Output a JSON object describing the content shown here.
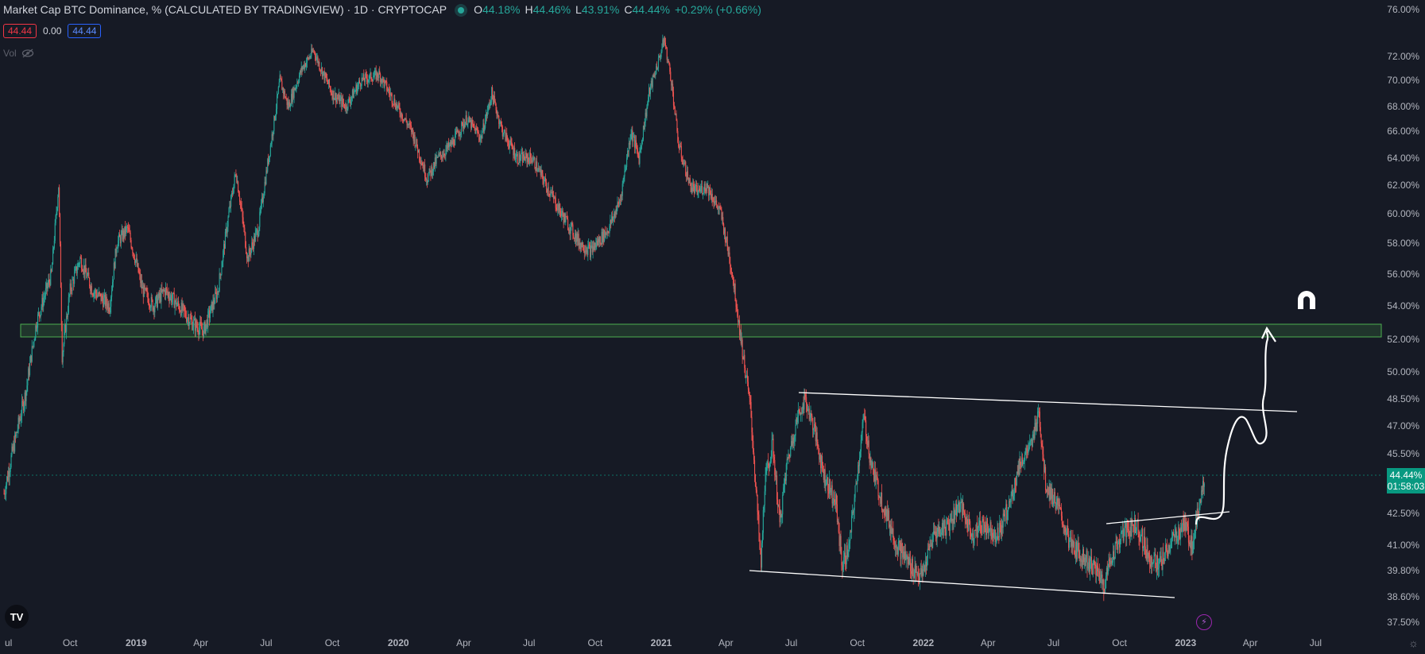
{
  "header": {
    "title": "Market Cap BTC Dominance, % (CALCULATED BY TRADINGVIEW) · 1D · CRYPTOCAP",
    "ohlc": [
      {
        "key": "O",
        "value": "44.18%"
      },
      {
        "key": "H",
        "value": "44.46%"
      },
      {
        "key": "L",
        "value": "43.91%"
      },
      {
        "key": "C",
        "value": "44.44%"
      }
    ],
    "change": "+0.29% (+0.66%)"
  },
  "badges": {
    "sell": "44.44",
    "spread": "0.00",
    "buy": "44.44"
  },
  "vol_label": "Vol",
  "price_tag": {
    "value": "44.44%",
    "countdown": "01:58:03"
  },
  "icons": {
    "logo": "tradingview-logo-icon",
    "hide": "eye-crossed-icon",
    "magnet": "magnet-icon",
    "bolt": "lightning-icon",
    "settings": "gear-icon"
  },
  "colors": {
    "background": "#161a25",
    "up": "#26a69a",
    "down": "#ef5350",
    "zone": "#4caf50",
    "drawing": "#ffffff",
    "price_tag": "#089981"
  },
  "chart_data": {
    "type": "candlestick",
    "y_axis": {
      "range": [
        37.0,
        76.0
      ],
      "ticks": [
        "76.00%",
        "72.00%",
        "70.00%",
        "68.00%",
        "66.00%",
        "64.00%",
        "62.00%",
        "60.00%",
        "58.00%",
        "56.00%",
        "54.00%",
        "52.00%",
        "50.00%",
        "48.50%",
        "47.00%",
        "45.50%",
        "42.50%",
        "41.00%",
        "39.80%",
        "38.60%",
        "37.50%"
      ],
      "tick_values": [
        76,
        72,
        70,
        68,
        66,
        64,
        62,
        60,
        58,
        56,
        54,
        52,
        50,
        48.5,
        47,
        45.5,
        42.5,
        41,
        39.8,
        38.6,
        37.5
      ]
    },
    "x_axis": {
      "labels": [
        "Jul",
        "Oct",
        "2019",
        "Apr",
        "Jul",
        "Oct",
        "2020",
        "Apr",
        "Jul",
        "Oct",
        "2021",
        "Apr",
        "Jul",
        "Oct",
        "2022",
        "Apr",
        "Jul",
        "Oct",
        "2023",
        "Apr",
        "Jul"
      ],
      "bold_labels": [
        "2019",
        "2020",
        "2021",
        "2022",
        "2023"
      ]
    },
    "last_price": 44.44,
    "series_path": [
      [
        "2018-07-01",
        43.5
      ],
      [
        "2018-08-01",
        49
      ],
      [
        "2018-08-15",
        53
      ],
      [
        "2018-09-05",
        56
      ],
      [
        "2018-09-15",
        62
      ],
      [
        "2018-09-20",
        51
      ],
      [
        "2018-10-01",
        55
      ],
      [
        "2018-10-15",
        57
      ],
      [
        "2018-11-01",
        55
      ],
      [
        "2018-11-25",
        54
      ],
      [
        "2018-12-05",
        58
      ],
      [
        "2018-12-20",
        59
      ],
      [
        "2019-01-10",
        55
      ],
      [
        "2019-01-25",
        54
      ],
      [
        "2019-02-10",
        55
      ],
      [
        "2019-03-01",
        54
      ],
      [
        "2019-03-20",
        53
      ],
      [
        "2019-04-05",
        52.5
      ],
      [
        "2019-04-25",
        55
      ],
      [
        "2019-05-10",
        60
      ],
      [
        "2019-05-20",
        63
      ],
      [
        "2019-06-05",
        57
      ],
      [
        "2019-06-20",
        59
      ],
      [
        "2019-07-10",
        66
      ],
      [
        "2019-07-20",
        70
      ],
      [
        "2019-08-01",
        68
      ],
      [
        "2019-08-20",
        71
      ],
      [
        "2019-09-05",
        72.5
      ],
      [
        "2019-09-15",
        71
      ],
      [
        "2019-10-01",
        69
      ],
      [
        "2019-10-20",
        68
      ],
      [
        "2019-11-10",
        70
      ],
      [
        "2019-12-05",
        70.5
      ],
      [
        "2019-12-30",
        68
      ],
      [
        "2020-01-20",
        66
      ],
      [
        "2020-02-10",
        62.5
      ],
      [
        "2020-02-25",
        64
      ],
      [
        "2020-03-15",
        65
      ],
      [
        "2020-04-05",
        67
      ],
      [
        "2020-04-25",
        65.5
      ],
      [
        "2020-05-10",
        69
      ],
      [
        "2020-05-25",
        66
      ],
      [
        "2020-06-15",
        64
      ],
      [
        "2020-07-05",
        64
      ],
      [
        "2020-07-25",
        62
      ],
      [
        "2020-08-15",
        60
      ],
      [
        "2020-09-10",
        58
      ],
      [
        "2020-09-25",
        57.5
      ],
      [
        "2020-10-20",
        59
      ],
      [
        "2020-11-05",
        61
      ],
      [
        "2020-11-20",
        66
      ],
      [
        "2020-12-01",
        64
      ],
      [
        "2020-12-15",
        69
      ],
      [
        "2020-12-30",
        72
      ],
      [
        "2021-01-05",
        73.5
      ],
      [
        "2021-01-15",
        70
      ],
      [
        "2021-01-25",
        65
      ],
      [
        "2021-02-10",
        62
      ],
      [
        "2021-02-20",
        61.5
      ],
      [
        "2021-03-05",
        62
      ],
      [
        "2021-03-25",
        60
      ],
      [
        "2021-04-10",
        56
      ],
      [
        "2021-04-25",
        51
      ],
      [
        "2021-05-05",
        48
      ],
      [
        "2021-05-15",
        42.5
      ],
      [
        "2021-05-20",
        40
      ],
      [
        "2021-05-25",
        44
      ],
      [
        "2021-06-05",
        46
      ],
      [
        "2021-06-15",
        42
      ],
      [
        "2021-06-25",
        45
      ],
      [
        "2021-07-10",
        47.5
      ],
      [
        "2021-07-20",
        48.5
      ],
      [
        "2021-08-01",
        47
      ],
      [
        "2021-08-15",
        44.5
      ],
      [
        "2021-09-01",
        43
      ],
      [
        "2021-09-10",
        40
      ],
      [
        "2021-09-20",
        41
      ],
      [
        "2021-10-01",
        44.5
      ],
      [
        "2021-10-10",
        47.5
      ],
      [
        "2021-10-20",
        45
      ],
      [
        "2021-11-05",
        43
      ],
      [
        "2021-11-25",
        41
      ],
      [
        "2021-12-15",
        40
      ],
      [
        "2021-12-30",
        39.5
      ],
      [
        "2022-01-15",
        41.5
      ],
      [
        "2022-02-05",
        42
      ],
      [
        "2022-02-20",
        43
      ],
      [
        "2022-03-10",
        41.5
      ],
      [
        "2022-03-25",
        42
      ],
      [
        "2022-04-15",
        41.5
      ],
      [
        "2022-05-01",
        43
      ],
      [
        "2022-05-15",
        45
      ],
      [
        "2022-06-01",
        46
      ],
      [
        "2022-06-10",
        48
      ],
      [
        "2022-06-20",
        44
      ],
      [
        "2022-07-05",
        43
      ],
      [
        "2022-07-25",
        41
      ],
      [
        "2022-08-10",
        40.5
      ],
      [
        "2022-08-25",
        40
      ],
      [
        "2022-09-10",
        39.2
      ],
      [
        "2022-09-20",
        40.5
      ],
      [
        "2022-10-05",
        41.5
      ],
      [
        "2022-10-25",
        42
      ],
      [
        "2022-11-10",
        40.5
      ],
      [
        "2022-11-25",
        40
      ],
      [
        "2022-12-10",
        41
      ],
      [
        "2022-12-20",
        41.5
      ],
      [
        "2022-12-30",
        42
      ],
      [
        "2023-01-10",
        41
      ],
      [
        "2023-01-20",
        43
      ],
      [
        "2023-01-28",
        44.44
      ]
    ]
  }
}
